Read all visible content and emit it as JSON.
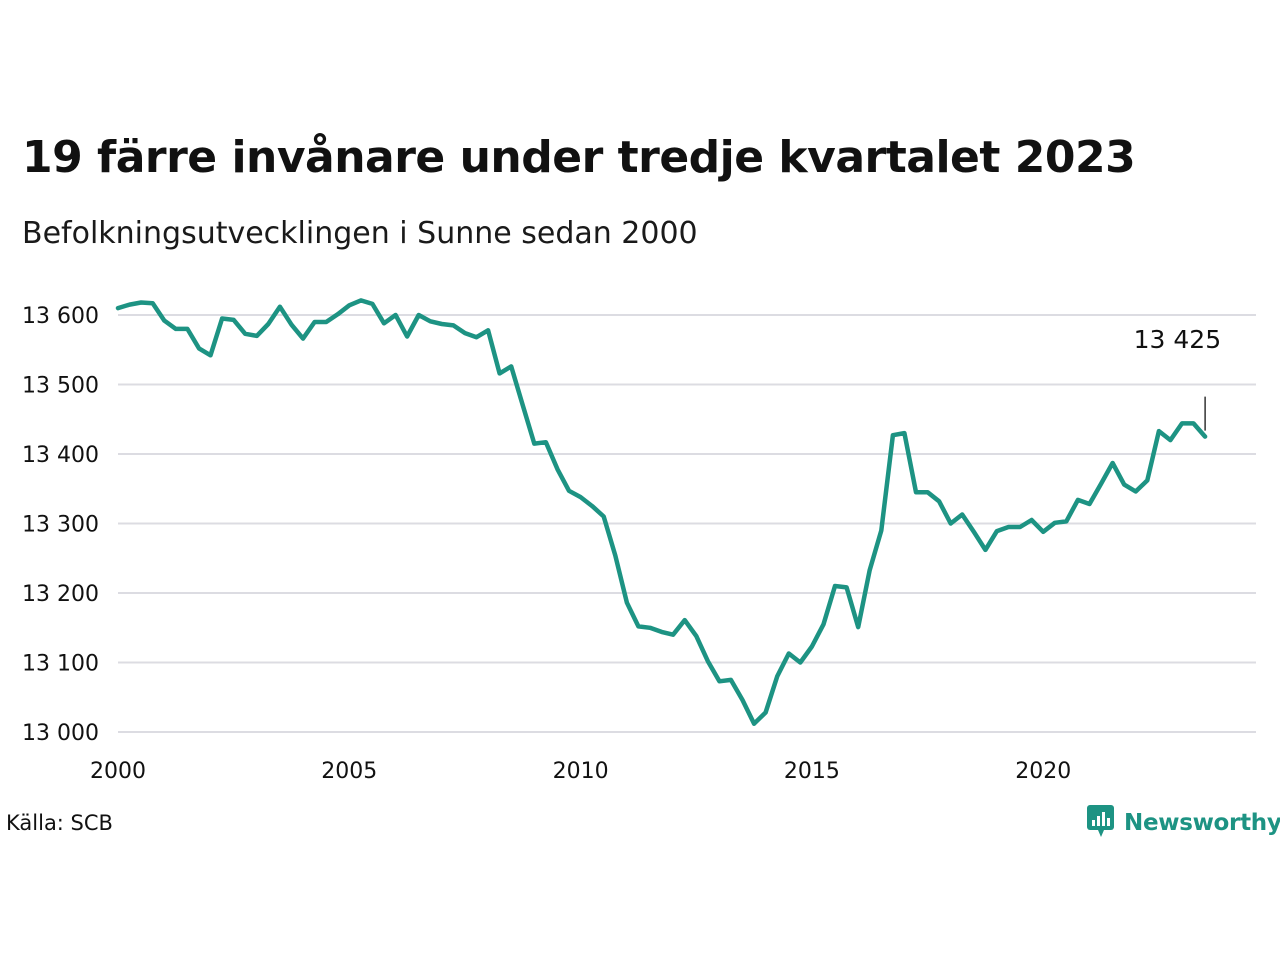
{
  "title": "19 färre invånare under tredje kvartalet 2023",
  "subtitle": "Befolkningsutvecklingen i Sunne sedan 2000",
  "source": "Källa: SCB",
  "brand": {
    "name": "Newsworthy",
    "icon": "newsworthy-logo-icon"
  },
  "colors": {
    "line": "#1d9383",
    "grid": "#dcdce2",
    "text": "#111111"
  },
  "chart_data": {
    "type": "line",
    "title": "19 färre invånare under tredje kvartalet 2023",
    "subtitle": "Befolkningsutvecklingen i Sunne sedan 2000",
    "xlabel": "",
    "ylabel": "",
    "xlim": [
      2000,
      2024.6
    ],
    "ylim": [
      13000,
      13600
    ],
    "grid": true,
    "x_ticks": [
      {
        "value": 2000,
        "label": "2000"
      },
      {
        "value": 2005,
        "label": "2005"
      },
      {
        "value": 2010,
        "label": "2010"
      },
      {
        "value": 2015,
        "label": "2015"
      },
      {
        "value": 2020,
        "label": "2020"
      }
    ],
    "y_ticks": [
      {
        "value": 13000,
        "label": "13 000"
      },
      {
        "value": 13100,
        "label": "13 100"
      },
      {
        "value": 13200,
        "label": "13 200"
      },
      {
        "value": 13300,
        "label": "13 300"
      },
      {
        "value": 13400,
        "label": "13 400"
      },
      {
        "value": 13500,
        "label": "13 500"
      },
      {
        "value": 13600,
        "label": "13 600"
      }
    ],
    "annotation": {
      "x": 2023.5,
      "y": 13425,
      "label": "13 425"
    },
    "series": [
      {
        "x": [
          2000.0,
          2000.25,
          2000.5,
          2000.75,
          2001.0,
          2001.25,
          2001.5,
          2001.75,
          2002.0,
          2002.25,
          2002.5,
          2002.75,
          2003.0,
          2003.25,
          2003.5,
          2003.75,
          2004.0,
          2004.25,
          2004.5,
          2004.75,
          2005.0,
          2005.25,
          2005.5,
          2005.75,
          2006.0,
          2006.25,
          2006.5,
          2006.75,
          2007.0,
          2007.25,
          2007.5,
          2007.75,
          2008.0,
          2008.25,
          2008.5,
          2008.75,
          2009.0,
          2009.25,
          2009.5,
          2009.75,
          2010.0,
          2010.25,
          2010.5,
          2010.75,
          2011.0,
          2011.25,
          2011.5,
          2011.75,
          2012.0,
          2012.25,
          2012.5,
          2012.75,
          2013.0,
          2013.25,
          2013.5,
          2013.75,
          2014.0,
          2014.25,
          2014.5,
          2014.75,
          2015.0,
          2015.25,
          2015.5,
          2015.75,
          2016.0,
          2016.25,
          2016.5,
          2016.75,
          2017.0,
          2017.25,
          2017.5,
          2017.75,
          2018.0,
          2018.25,
          2018.5,
          2018.75,
          2019.0,
          2019.25,
          2019.5,
          2019.75,
          2020.0,
          2020.25,
          2020.5,
          2020.75,
          2021.0,
          2021.25,
          2021.5,
          2021.75,
          2022.0,
          2022.25,
          2022.5,
          2022.75,
          2023.0,
          2023.25,
          2023.5
        ],
        "values": [
          13610,
          13615,
          13618,
          13617,
          13592,
          13580,
          13580,
          13552,
          13542,
          13595,
          13593,
          13573,
          13570,
          13587,
          13612,
          13586,
          13566,
          13590,
          13590,
          13601,
          13614,
          13621,
          13616,
          13588,
          13600,
          13569,
          13600,
          13591,
          13587,
          13585,
          13574,
          13568,
          13578,
          13516,
          13526,
          13470,
          13415,
          13417,
          13378,
          13347,
          13338,
          13325,
          13310,
          13254,
          13186,
          13152,
          13150,
          13144,
          13140,
          13161,
          13138,
          13102,
          13073,
          13075,
          13046,
          13012,
          13028,
          13080,
          13113,
          13100,
          13123,
          13155,
          13210,
          13208,
          13151,
          13233,
          13290,
          13427,
          13430,
          13345,
          13345,
          13332,
          13300,
          13313,
          13288,
          13262,
          13289,
          13295,
          13295,
          13305,
          13288,
          13301,
          13303,
          13334,
          13328,
          13357,
          13387,
          13356,
          13346,
          13362,
          13433,
          13420,
          13444,
          13444,
          13425
        ]
      }
    ]
  }
}
